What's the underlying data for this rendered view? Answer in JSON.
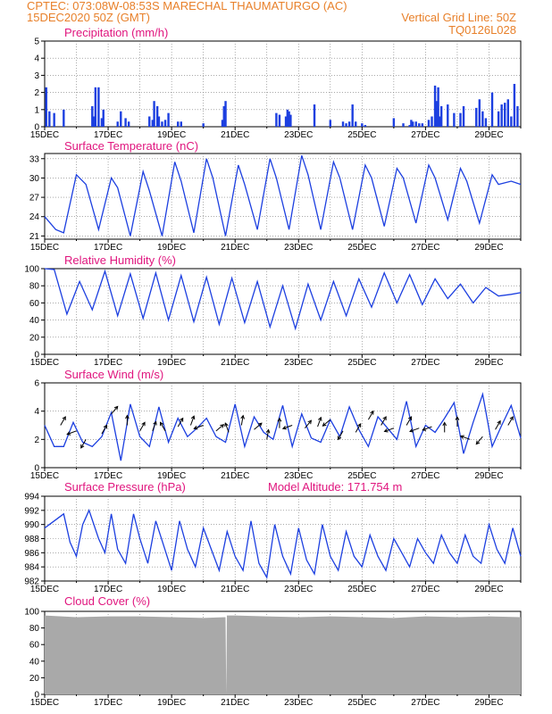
{
  "header": {
    "line1_left": "CPTEC:   073:08W-08:53S   MARECHAL THAUMATURGO (AC)",
    "line2_left": "15DEC2020 50Z (GMT)",
    "line2_right": "Vertical Grid Line: 50Z",
    "line3_right": "TQ0126L028"
  },
  "colors": {
    "header": "#e8802a",
    "panel_title": "#e0157e",
    "series": "#1c3fe0",
    "cloud": "#a9a9a9",
    "wind_arrow": "#000000"
  },
  "x_ticks": [
    "15DEC",
    "17DEC",
    "19DEC",
    "21DEC",
    "23DEC",
    "25DEC",
    "27DEC",
    "29DEC"
  ],
  "chart_data": [
    {
      "type": "bar",
      "title": "Precipitation (mm/h)",
      "ylim": [
        0,
        5
      ],
      "yticks": [
        "0",
        "1",
        "2",
        "3",
        "4",
        "5"
      ],
      "x_days": [
        0.05,
        0.15,
        0.3,
        0.6,
        1.5,
        1.55,
        1.6,
        1.7,
        1.8,
        1.85,
        2.3,
        2.4,
        2.55,
        2.65,
        3.3,
        3.4,
        3.45,
        3.55,
        3.6,
        3.7,
        3.8,
        3.9,
        4.2,
        4.3,
        5.0,
        5.6,
        5.65,
        5.7,
        7.3,
        7.4,
        7.6,
        7.65,
        7.7,
        7.75,
        8.5,
        9.0,
        9.4,
        9.5,
        9.6,
        9.7,
        9.8,
        10.0,
        10.1,
        11.0,
        11.3,
        11.5,
        11.55,
        11.6,
        11.7,
        11.8,
        11.9,
        12.1,
        12.2,
        12.3,
        12.35,
        12.4,
        12.45,
        12.5,
        12.7,
        12.9,
        13.1,
        13.2,
        13.6,
        13.7,
        13.8,
        13.9,
        14.1,
        14.3,
        14.4,
        14.5,
        14.6,
        14.7,
        14.8,
        14.9
      ],
      "values": [
        2.3,
        0.9,
        0.8,
        1.0,
        1.2,
        0.6,
        2.3,
        2.3,
        0.5,
        1.0,
        0.3,
        0.9,
        0.5,
        0.3,
        0.6,
        0.4,
        1.5,
        1.2,
        0.6,
        0.3,
        0.4,
        0.8,
        0.3,
        0.3,
        0.2,
        0.4,
        1.2,
        1.5,
        0.8,
        0.7,
        0.6,
        1.0,
        0.9,
        0.7,
        1.3,
        0.4,
        0.3,
        0.2,
        0.3,
        1.3,
        0.3,
        0.2,
        0.1,
        0.5,
        0.2,
        0.1,
        0.4,
        0.3,
        0.3,
        0.2,
        0.2,
        0.4,
        0.6,
        2.4,
        1.5,
        2.3,
        0.6,
        1.2,
        1.3,
        0.8,
        0.8,
        1.2,
        1.1,
        1.6,
        0.9,
        0.5,
        2.0,
        0.9,
        1.3,
        1.4,
        1.6,
        0.6,
        2.5,
        1.2
      ]
    },
    {
      "type": "line",
      "title": "Surface Temperature (nC)",
      "ylim": [
        20.5,
        33.8
      ],
      "yticks": [
        "21",
        "24",
        "27",
        "30",
        "33"
      ],
      "series": [
        {
          "x_days": [
            0,
            0.35,
            0.6,
            1.0,
            1.3,
            1.7,
            2.1,
            2.3,
            2.7,
            3.1,
            3.3,
            3.7,
            4.1,
            4.3,
            4.7,
            5.1,
            5.3,
            5.7,
            6.1,
            6.3,
            6.7,
            7.1,
            7.3,
            7.7,
            8.1,
            8.3,
            8.7,
            9.1,
            9.3,
            9.7,
            10.1,
            10.3,
            10.7,
            11.1,
            11.3,
            11.7,
            12.1,
            12.3,
            12.7,
            13.1,
            13.3,
            13.7,
            14.1,
            14.3,
            14.7,
            15.0
          ],
          "values": [
            24,
            22,
            21.5,
            30.5,
            29,
            22,
            30,
            28.5,
            21,
            31,
            28,
            21,
            32.5,
            29.5,
            21.5,
            33,
            30,
            21,
            32,
            29,
            22,
            33,
            30,
            22,
            33.5,
            30.5,
            22,
            32.5,
            30,
            22,
            32,
            30,
            22.5,
            31.5,
            30,
            23,
            32,
            30,
            23.5,
            31.5,
            29.5,
            23,
            30.5,
            29,
            29.5,
            29
          ]
        }
      ]
    },
    {
      "type": "line",
      "title": "Relative Humidity (%)",
      "ylim": [
        0,
        100
      ],
      "yticks": [
        "0",
        "20",
        "40",
        "60",
        "80",
        "100"
      ],
      "series": [
        {
          "x_days": [
            0,
            0.3,
            0.7,
            1.1,
            1.5,
            1.9,
            2.3,
            2.7,
            3.1,
            3.5,
            3.9,
            4.3,
            4.7,
            5.1,
            5.5,
            5.9,
            6.3,
            6.7,
            7.1,
            7.5,
            7.9,
            8.3,
            8.7,
            9.1,
            9.5,
            9.9,
            10.3,
            10.7,
            11.1,
            11.5,
            11.9,
            12.3,
            12.7,
            13.1,
            13.5,
            13.9,
            14.3,
            14.7,
            15.0
          ],
          "values": [
            100,
            99,
            47,
            85,
            52,
            97,
            45,
            94,
            42,
            95,
            40,
            92,
            38,
            90,
            35,
            89,
            37,
            85,
            32,
            80,
            30,
            82,
            40,
            85,
            45,
            88,
            55,
            95,
            60,
            93,
            58,
            88,
            65,
            82,
            60,
            78,
            68,
            70,
            72
          ]
        }
      ]
    },
    {
      "type": "line",
      "title": "Surface Wind (m/s)",
      "ylim": [
        0,
        6
      ],
      "yticks": [
        "0",
        "2",
        "4",
        "6"
      ],
      "series": [
        {
          "x_days": [
            0,
            0.3,
            0.6,
            0.9,
            1.2,
            1.5,
            1.8,
            2.1,
            2.4,
            2.7,
            3.0,
            3.3,
            3.6,
            3.9,
            4.2,
            4.5,
            4.8,
            5.1,
            5.4,
            5.7,
            6.0,
            6.3,
            6.6,
            6.9,
            7.2,
            7.5,
            7.8,
            8.1,
            8.4,
            8.7,
            9.0,
            9.3,
            9.6,
            9.9,
            10.2,
            10.5,
            10.8,
            11.1,
            11.4,
            11.7,
            12.0,
            12.3,
            12.6,
            12.9,
            13.2,
            13.5,
            13.8,
            14.1,
            14.4,
            14.7,
            15.0
          ],
          "values": [
            3.0,
            1.5,
            1.5,
            3.2,
            1.8,
            1.5,
            2.2,
            3.9,
            0.5,
            4.5,
            2.2,
            1.5,
            4.3,
            1.8,
            3.5,
            2.2,
            2.8,
            3.5,
            2.2,
            1.8,
            4.5,
            1.5,
            3.6,
            2.5,
            2.0,
            4.4,
            1.5,
            3.8,
            2.1,
            1.8,
            3.4,
            2.2,
            4.3,
            2.7,
            1.5,
            3.6,
            2.8,
            2.0,
            4.7,
            1.5,
            3.0,
            2.5,
            3.5,
            4.6,
            1.0,
            3.2,
            5.2,
            1.5,
            3.0,
            4.4,
            2.1
          ]
        }
      ],
      "wind_arrows": {
        "x_days": [
          0.5,
          1.0,
          1.3,
          1.8,
          2.1,
          2.6,
          3.0,
          3.4,
          3.8,
          4.2,
          4.6,
          5.0,
          5.4,
          5.8,
          6.2,
          6.6,
          7.0,
          7.4,
          7.8,
          8.2,
          8.6,
          9.0,
          9.4,
          9.8,
          10.2,
          10.6,
          11.0,
          11.4,
          11.8,
          12.2,
          12.6,
          13.0,
          13.4,
          13.8,
          14.2,
          14.6
        ],
        "speed": [
          3.0,
          2.6,
          2.0,
          2.4,
          3.8,
          3.0,
          2.6,
          2.6,
          2.6,
          2.9,
          3.0,
          3.0,
          2.6,
          2.5,
          3.0,
          2.7,
          2.0,
          2.8,
          3.0,
          2.8,
          2.9,
          3.4,
          2.6,
          2.5,
          3.4,
          3.0,
          2.8,
          3.0,
          2.8,
          2.9,
          2.5,
          2.9,
          2.0,
          2.2,
          2.7,
          3.0
        ],
        "direction_deg": [
          60,
          200,
          240,
          60,
          50,
          90,
          60,
          70,
          120,
          60,
          70,
          200,
          40,
          110,
          80,
          40,
          80,
          90,
          200,
          50,
          70,
          220,
          240,
          60,
          60,
          60,
          200,
          60,
          200,
          200,
          90,
          90,
          160,
          230,
          60,
          60
        ]
      }
    },
    {
      "type": "line",
      "title": "Surface Pressure (hPa)",
      "annotation": "Model Altitude: 171.754 m",
      "ylim": [
        982,
        994
      ],
      "yticks": [
        "982",
        "984",
        "986",
        "988",
        "990",
        "992",
        "994"
      ],
      "series": [
        {
          "x_days": [
            0,
            0.15,
            0.6,
            0.8,
            1.0,
            1.2,
            1.4,
            1.7,
            1.9,
            2.1,
            2.3,
            2.55,
            2.8,
            3.0,
            3.25,
            3.5,
            3.75,
            4.0,
            4.25,
            4.5,
            4.75,
            5.0,
            5.25,
            5.5,
            5.75,
            6.0,
            6.25,
            6.5,
            6.75,
            7.0,
            7.25,
            7.5,
            7.75,
            8.0,
            8.25,
            8.5,
            8.75,
            9.0,
            9.25,
            9.5,
            9.75,
            10.0,
            10.25,
            10.5,
            10.75,
            11.0,
            11.25,
            11.5,
            11.75,
            12.0,
            12.25,
            12.5,
            12.75,
            13.0,
            13.25,
            13.5,
            13.75,
            14.0,
            14.25,
            14.5,
            14.75,
            15.0
          ],
          "values": [
            989.5,
            990,
            991.5,
            987.5,
            985.5,
            990,
            992,
            988,
            986,
            991.5,
            986.5,
            984.5,
            991.5,
            988,
            984.5,
            990.5,
            987,
            983.5,
            990.5,
            986.5,
            984,
            989.5,
            986.5,
            983.5,
            989,
            985.5,
            983.5,
            990.5,
            984.5,
            982.5,
            990,
            985.5,
            983,
            989.5,
            985,
            983,
            990,
            985.5,
            983.5,
            989,
            985.5,
            984,
            988.5,
            985.5,
            983.5,
            988,
            986,
            984,
            988,
            986,
            984.5,
            988.5,
            986,
            984.5,
            988.5,
            985.5,
            984.5,
            990,
            986.5,
            984.5,
            989.5,
            985.5
          ]
        }
      ]
    },
    {
      "type": "area",
      "title": "Cloud Cover (%)",
      "ylim": [
        0,
        100
      ],
      "yticks": [
        "0",
        "20",
        "40",
        "60",
        "80",
        "100"
      ],
      "series": [
        {
          "x_days": [
            0,
            1,
            2,
            3,
            4,
            5,
            5.7,
            5.72,
            5.74,
            6,
            7,
            8,
            9,
            10,
            11,
            12,
            13,
            14,
            15
          ],
          "values": [
            95,
            93,
            94,
            94,
            93,
            92,
            93,
            0,
            95,
            95,
            94,
            93,
            94,
            93,
            92,
            94,
            93,
            94,
            93
          ]
        }
      ]
    }
  ]
}
